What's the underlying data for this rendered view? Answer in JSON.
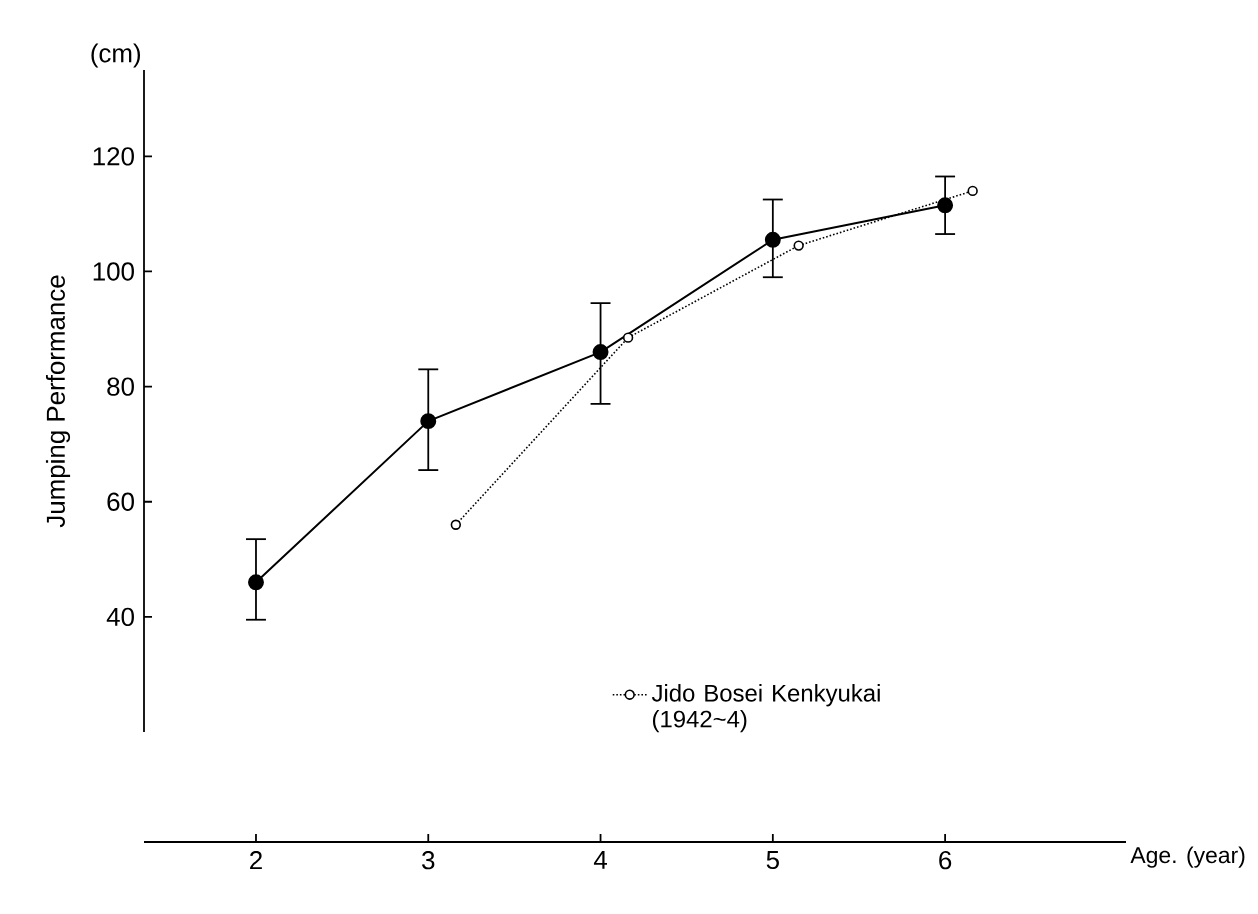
{
  "chart_data": {
    "type": "line",
    "ylabel": "Jumping Performance",
    "xlabel": "Age. (year)",
    "annotations": [
      "(cm)"
    ],
    "xlim": [
      1.35,
      7.05
    ],
    "xticks": [
      2,
      3,
      4,
      5,
      6
    ],
    "ylim": [
      20,
      135
    ],
    "yticks": [
      40,
      60,
      80,
      100,
      120
    ],
    "marker": "circle",
    "legend": "bottom right",
    "series": [
      {
        "color": "#000000",
        "line_style": "solid",
        "x": [
          2,
          3,
          4,
          5,
          6
        ],
        "values": [
          46,
          74,
          86,
          105.5,
          111.5
        ],
        "errors": [
          [
            39.5,
            53.5
          ],
          [
            65.5,
            83
          ],
          [
            77,
            94.5
          ],
          [
            99,
            112.5
          ],
          [
            106.5,
            116.5
          ]
        ]
      },
      {
        "name": "Jido Bosei Kenkyukai (1942~4)",
        "color": "#000000",
        "line_style": "dotted",
        "x": [
          3.16,
          4.16,
          5.15,
          6.16
        ],
        "values": [
          56,
          88.5,
          104.5,
          114
        ]
      }
    ]
  }
}
